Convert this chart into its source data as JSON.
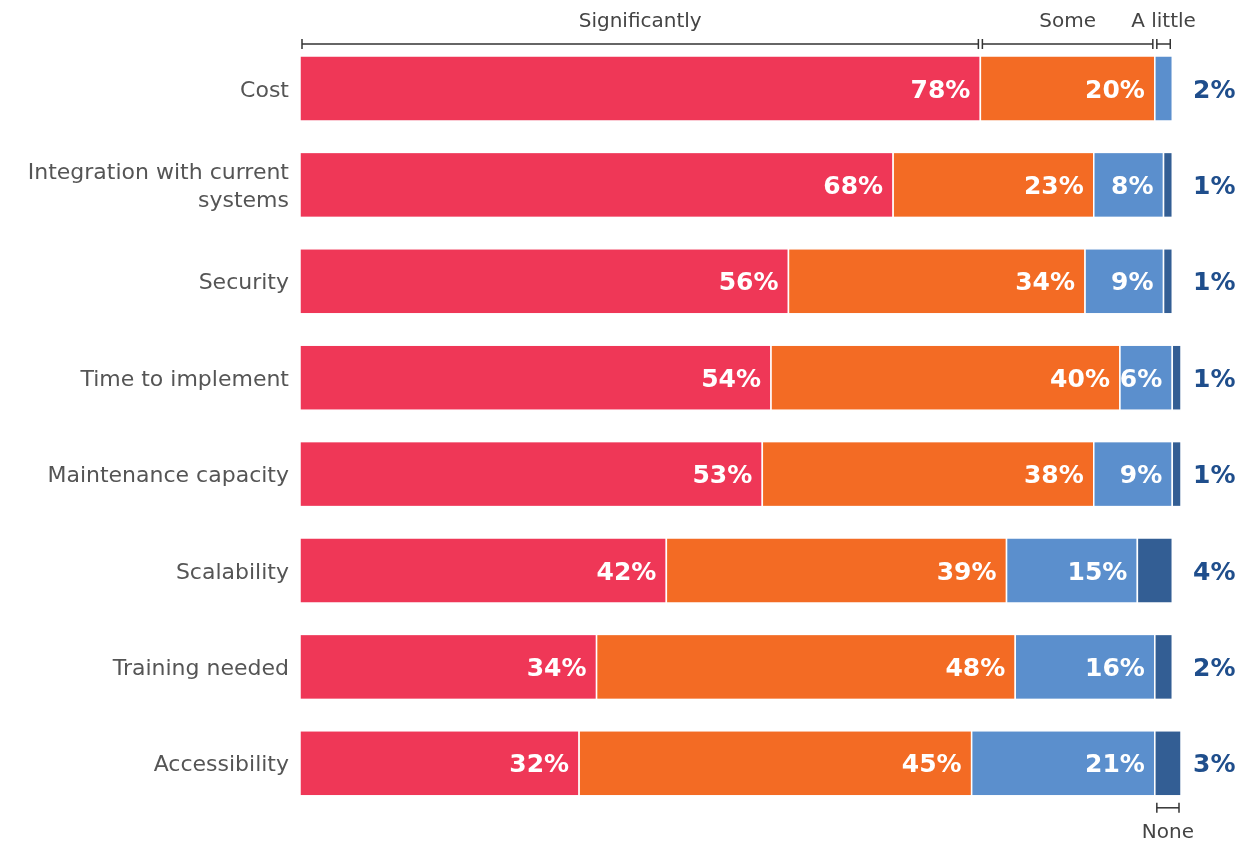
{
  "chart_data": {
    "type": "bar",
    "orientation": "horizontal",
    "stacked": true,
    "legend": "top",
    "categories": [
      "Cost",
      "Integration with current systems",
      "Security",
      "Time to implement",
      "Maintenance capacity",
      "Scalability",
      "Training needed",
      "Accessibility"
    ],
    "series": [
      {
        "name": "Significantly",
        "color": "#ef3757",
        "values": [
          78,
          68,
          56,
          54,
          53,
          42,
          34,
          32
        ],
        "value_labels": [
          "78%",
          "68%",
          "56%",
          "54%",
          "53%",
          "42%",
          "34%",
          "32%"
        ]
      },
      {
        "name": "Some",
        "color": "#f36b24",
        "values": [
          20,
          23,
          34,
          40,
          38,
          39,
          48,
          45
        ],
        "value_labels": [
          "20%",
          "23%",
          "34%",
          "40%",
          "38%",
          "39%",
          "48%",
          "45%"
        ]
      },
      {
        "name": "A little",
        "color": "#5b8fcd",
        "values": [
          2,
          8,
          9,
          6,
          9,
          15,
          16,
          21
        ],
        "value_labels": [
          "2%",
          "8%",
          "9%",
          "6%",
          "9%",
          "15%",
          "16%",
          "21%"
        ]
      },
      {
        "name": "None",
        "color": "#335e94",
        "values": [
          null,
          1,
          1,
          1,
          1,
          4,
          2,
          3
        ],
        "value_labels": [
          null,
          "1%",
          "1%",
          "1%",
          "1%",
          "4%",
          "2%",
          "3%"
        ]
      }
    ]
  }
}
